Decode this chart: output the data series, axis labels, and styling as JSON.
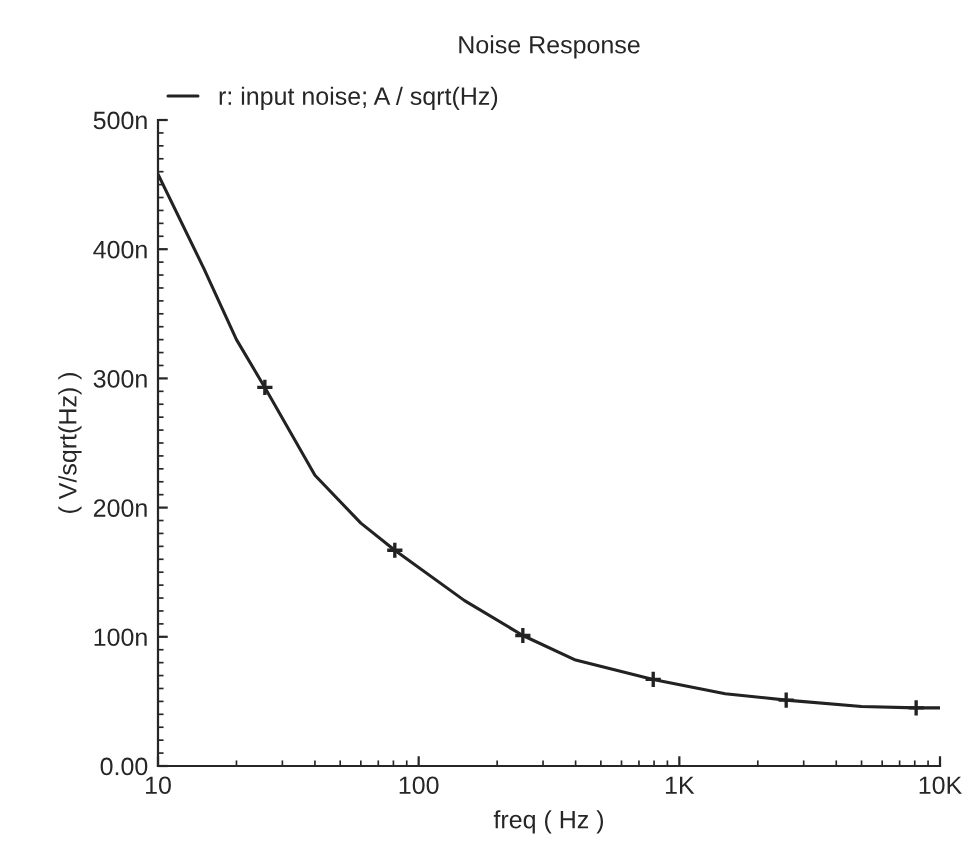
{
  "chart_data": {
    "type": "line",
    "title": "Noise Response",
    "xlabel": "freq ( Hz )",
    "ylabel": "( V/sqrt(Hz) )",
    "log": "x",
    "series": [
      {
        "name": "r: input noise; A / sqrt(Hz)",
        "color": "#222222",
        "x": [
          10,
          15,
          20,
          25.7,
          40,
          60,
          81,
          150,
          251,
          400,
          794,
          1500,
          2570,
          5000,
          8100,
          10000
        ],
        "values": [
          458,
          385,
          330,
          293,
          225,
          188,
          167,
          128,
          101,
          82,
          67,
          56,
          51,
          46,
          45,
          45
        ],
        "marker": "none"
      },
      {
        "type": "scatter",
        "color": "#222222",
        "x": [
          25.7,
          81,
          251,
          794,
          2570,
          8100
        ],
        "values": [
          293,
          167,
          101,
          67,
          51,
          45
        ],
        "marker": "cross"
      }
    ],
    "xlim": [
      10,
      10000
    ],
    "xticks": [
      10,
      100,
      {
        "value": 1000,
        "label": "1K"
      },
      {
        "value": 10000,
        "label": "10K"
      }
    ],
    "ylim": [
      0,
      500
    ],
    "yticks": [
      {
        "value": 0,
        "label": "0.00"
      },
      {
        "value": 100,
        "label": "100n"
      },
      {
        "value": 200,
        "label": "200n"
      },
      {
        "value": 300,
        "label": "300n"
      },
      {
        "value": 400,
        "label": "400n"
      },
      {
        "value": 500,
        "label": "500n"
      }
    ],
    "grid": false,
    "legend": "top left"
  }
}
